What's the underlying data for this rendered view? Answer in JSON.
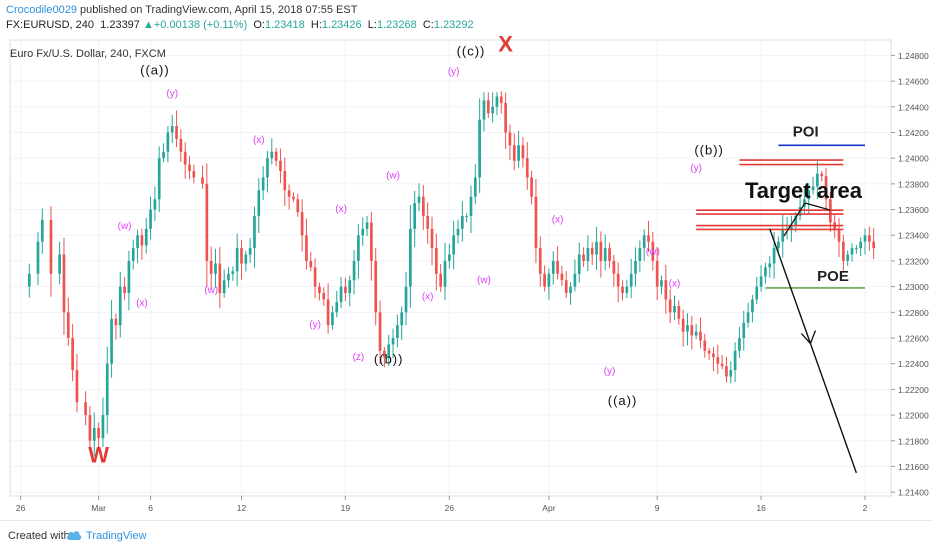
{
  "header": {
    "author": "Crocodile0029",
    "published_text": "published on TradingView.com, April 15, 2018 07:55 EST",
    "symbol": "FX:EURUSD, 240",
    "last": "1.23397",
    "change": "+0.00138 (+0.11%)",
    "o_label": "O:",
    "o_value": "1.23418",
    "h_label": "H:",
    "h_value": "1.23426",
    "l_label": "L:",
    "l_value": "1.23268",
    "c_label": "C:",
    "c_value": "1.23292"
  },
  "footer": {
    "created_with": "Created with",
    "brand": "TradingView"
  },
  "colors": {
    "up": "#26a69a",
    "down": "#ef5350",
    "wave_label": "#e040fb",
    "red_mark": "#e53935",
    "poi_line": "#1a36c4",
    "poe_line": "#6aa84f",
    "grid": "#f0f3fa"
  },
  "chart_data": {
    "type": "candlestick",
    "legend_title": "Euro Fx/U.S. Dollar, 240, FXCM",
    "y_ticks": [
      "1.24800",
      "1.24600",
      "1.24400",
      "1.24200",
      "1.24000",
      "1.23800",
      "1.23600",
      "1.23400",
      "1.23200",
      "1.23000",
      "1.22800",
      "1.22600",
      "1.22400",
      "1.22200",
      "1.22000",
      "1.21800",
      "1.21600",
      "1.21400"
    ],
    "ylim": [
      1.2137,
      1.2492
    ],
    "x_ticks": [
      {
        "label": "26",
        "t": 0
      },
      {
        "label": "Mar",
        "t": 18
      },
      {
        "label": "6",
        "t": 30
      },
      {
        "label": "12",
        "t": 51
      },
      {
        "label": "19",
        "t": 75
      },
      {
        "label": "26",
        "t": 99
      },
      {
        "label": "Apr",
        "t": 122
      },
      {
        "label": "9",
        "t": 147
      },
      {
        "label": "16",
        "t": 171
      },
      {
        "label": "2",
        "t": 195
      }
    ],
    "xlim": [
      -2,
      198
    ],
    "price_path": [
      [
        0,
        1.23
      ],
      [
        2,
        1.231
      ],
      [
        4,
        1.2335
      ],
      [
        5,
        1.2352
      ],
      [
        7,
        1.231
      ],
      [
        9,
        1.2325
      ],
      [
        10,
        1.228
      ],
      [
        11,
        1.226
      ],
      [
        12,
        1.2235
      ],
      [
        13,
        1.221
      ],
      [
        15,
        1.22
      ],
      [
        16,
        1.218
      ],
      [
        17,
        1.219
      ],
      [
        18,
        1.2182
      ],
      [
        19,
        1.22
      ],
      [
        20,
        1.224
      ],
      [
        21,
        1.2275
      ],
      [
        22,
        1.227
      ],
      [
        23,
        1.23
      ],
      [
        24,
        1.2295
      ],
      [
        25,
        1.232
      ],
      [
        26,
        1.233
      ],
      [
        27,
        1.234
      ],
      [
        28,
        1.2332
      ],
      [
        29,
        1.2345
      ],
      [
        30,
        1.236
      ],
      [
        31,
        1.2368
      ],
      [
        32,
        1.24
      ],
      [
        33,
        1.2405
      ],
      [
        34,
        1.242
      ],
      [
        35,
        1.2425
      ],
      [
        36,
        1.2415
      ],
      [
        37,
        1.2405
      ],
      [
        38,
        1.2395
      ],
      [
        39,
        1.239
      ],
      [
        40,
        1.2385
      ],
      [
        42,
        1.238
      ],
      [
        43,
        1.232
      ],
      [
        44,
        1.231
      ],
      [
        45,
        1.2318
      ],
      [
        46,
        1.2295
      ],
      [
        47,
        1.2305
      ],
      [
        48,
        1.231
      ],
      [
        49,
        1.2312
      ],
      [
        50,
        1.233
      ],
      [
        51,
        1.2318
      ],
      [
        52,
        1.2325
      ],
      [
        53,
        1.233
      ],
      [
        54,
        1.2355
      ],
      [
        55,
        1.2375
      ],
      [
        56,
        1.2385
      ],
      [
        57,
        1.24
      ],
      [
        58,
        1.2405
      ],
      [
        59,
        1.2398
      ],
      [
        60,
        1.239
      ],
      [
        61,
        1.2375
      ],
      [
        62,
        1.237
      ],
      [
        63,
        1.2368
      ],
      [
        64,
        1.2358
      ],
      [
        65,
        1.234
      ],
      [
        66,
        1.232
      ],
      [
        67,
        1.2315
      ],
      [
        68,
        1.23
      ],
      [
        69,
        1.2295
      ],
      [
        70,
        1.229
      ],
      [
        71,
        1.227
      ],
      [
        72,
        1.228
      ],
      [
        73,
        1.2288
      ],
      [
        74,
        1.23
      ],
      [
        75,
        1.2295
      ],
      [
        76,
        1.2305
      ],
      [
        77,
        1.232
      ],
      [
        78,
        1.234
      ],
      [
        79,
        1.2345
      ],
      [
        80,
        1.235
      ],
      [
        81,
        1.232
      ],
      [
        82,
        1.228
      ],
      [
        83,
        1.225
      ],
      [
        84,
        1.2245
      ],
      [
        85,
        1.2255
      ],
      [
        86,
        1.226
      ],
      [
        87,
        1.227
      ],
      [
        88,
        1.228
      ],
      [
        89,
        1.23
      ],
      [
        90,
        1.2345
      ],
      [
        91,
        1.2365
      ],
      [
        92,
        1.237
      ],
      [
        93,
        1.2355
      ],
      [
        94,
        1.2345
      ],
      [
        95,
        1.233
      ],
      [
        96,
        1.231
      ],
      [
        97,
        1.23
      ],
      [
        98,
        1.232
      ],
      [
        99,
        1.2325
      ],
      [
        100,
        1.234
      ],
      [
        101,
        1.2345
      ],
      [
        102,
        1.2355
      ],
      [
        103,
        1.2355
      ],
      [
        104,
        1.237
      ],
      [
        105,
        1.2385
      ],
      [
        106,
        1.243
      ],
      [
        107,
        1.2445
      ],
      [
        108,
        1.2435
      ],
      [
        109,
        1.244
      ],
      [
        110,
        1.2448
      ],
      [
        111,
        1.2443
      ],
      [
        112,
        1.242
      ],
      [
        113,
        1.241
      ],
      [
        114,
        1.2398
      ],
      [
        115,
        1.241
      ],
      [
        116,
        1.24
      ],
      [
        117,
        1.2385
      ],
      [
        118,
        1.237
      ],
      [
        119,
        1.233
      ],
      [
        120,
        1.231
      ],
      [
        121,
        1.23
      ],
      [
        122,
        1.231
      ],
      [
        123,
        1.232
      ],
      [
        124,
        1.231
      ],
      [
        125,
        1.2305
      ],
      [
        126,
        1.2295
      ],
      [
        127,
        1.23
      ],
      [
        128,
        1.231
      ],
      [
        129,
        1.2325
      ],
      [
        130,
        1.232
      ],
      [
        131,
        1.233
      ],
      [
        132,
        1.2325
      ],
      [
        133,
        1.2335
      ],
      [
        134,
        1.232
      ],
      [
        135,
        1.233
      ],
      [
        136,
        1.232
      ],
      [
        137,
        1.231
      ],
      [
        138,
        1.23
      ],
      [
        139,
        1.2295
      ],
      [
        140,
        1.23
      ],
      [
        141,
        1.231
      ],
      [
        142,
        1.232
      ],
      [
        143,
        1.233
      ],
      [
        144,
        1.234
      ],
      [
        145,
        1.2335
      ],
      [
        146,
        1.232
      ],
      [
        147,
        1.23
      ],
      [
        148,
        1.2305
      ],
      [
        149,
        1.229
      ],
      [
        150,
        1.228
      ],
      [
        151,
        1.2285
      ],
      [
        152,
        1.2275
      ],
      [
        153,
        1.2265
      ],
      [
        154,
        1.227
      ],
      [
        155,
        1.2262
      ],
      [
        156,
        1.2265
      ],
      [
        157,
        1.2258
      ],
      [
        158,
        1.225
      ],
      [
        159,
        1.2248
      ],
      [
        160,
        1.2245
      ],
      [
        161,
        1.224
      ],
      [
        162,
        1.2238
      ],
      [
        163,
        1.223
      ],
      [
        164,
        1.2235
      ],
      [
        165,
        1.225
      ],
      [
        166,
        1.226
      ],
      [
        167,
        1.2272
      ],
      [
        168,
        1.228
      ],
      [
        169,
        1.229
      ],
      [
        170,
        1.23
      ],
      [
        171,
        1.2308
      ],
      [
        172,
        1.2315
      ],
      [
        173,
        1.2318
      ],
      [
        174,
        1.233
      ],
      [
        175,
        1.2335
      ],
      [
        176,
        1.2345
      ],
      [
        177,
        1.2345
      ],
      [
        178,
        1.2348
      ],
      [
        179,
        1.2355
      ],
      [
        180,
        1.2362
      ],
      [
        181,
        1.2368
      ],
      [
        182,
        1.2375
      ],
      [
        183,
        1.2378
      ],
      [
        184,
        1.2388
      ],
      [
        185,
        1.2386
      ],
      [
        186,
        1.2368
      ],
      [
        187,
        1.235
      ],
      [
        188,
        1.2345
      ],
      [
        189,
        1.2335
      ],
      [
        190,
        1.232
      ],
      [
        191,
        1.2325
      ],
      [
        192,
        1.233
      ],
      [
        193,
        1.233
      ],
      [
        194,
        1.2335
      ],
      [
        195,
        1.234
      ],
      [
        196,
        1.2335
      ],
      [
        197,
        1.233
      ]
    ],
    "wave_labels": [
      {
        "text": "(w)",
        "t": 24,
        "v": 1.2345
      },
      {
        "text": "(x)",
        "t": 28,
        "v": 1.2285
      },
      {
        "text": "(y)",
        "t": 35,
        "v": 1.2448
      },
      {
        "text": "(w)",
        "t": 44,
        "v": 1.2295
      },
      {
        "text": "(x)",
        "t": 55,
        "v": 1.2412
      },
      {
        "text": "(y)",
        "t": 68,
        "v": 1.2268
      },
      {
        "text": "(x)",
        "t": 74,
        "v": 1.2358
      },
      {
        "text": "(z)",
        "t": 78,
        "v": 1.2243
      },
      {
        "text": "(w)",
        "t": 86,
        "v": 1.2384
      },
      {
        "text": "(x)",
        "t": 94,
        "v": 1.229
      },
      {
        "text": "(y)",
        "t": 100,
        "v": 1.2465
      },
      {
        "text": "(w)",
        "t": 107,
        "v": 1.2303
      },
      {
        "text": "(x)",
        "t": 124,
        "v": 1.235
      },
      {
        "text": "(w)",
        "t": 146,
        "v": 1.2325
      },
      {
        "text": "(y)",
        "t": 136,
        "v": 1.2232
      },
      {
        "text": "(x)",
        "t": 151,
        "v": 1.23
      },
      {
        "text": "(y)",
        "t": 156,
        "v": 1.239
      }
    ],
    "degree_labels": [
      {
        "text": "((a))",
        "t": 31,
        "v": 1.2465
      },
      {
        "text": "((c))",
        "t": 104,
        "v": 1.248
      },
      {
        "text": "((b))",
        "t": 85,
        "v": 1.224
      },
      {
        "text": "((a))",
        "t": 139,
        "v": 1.2208
      },
      {
        "text": "((b))",
        "t": 159,
        "v": 1.2403
      }
    ],
    "markers": [
      {
        "text": "W",
        "t": 18,
        "v": 1.2163
      },
      {
        "text": "X",
        "t": 112,
        "v": 1.2483
      }
    ],
    "target_lines": [
      1.23985,
      1.2395,
      1.23595,
      1.23565,
      1.23475,
      1.23445
    ],
    "target_zones": [
      [
        166,
        190
      ],
      [
        156,
        190
      ]
    ],
    "poi": {
      "label": "POI",
      "level": 1.241,
      "t_from": 175,
      "t_to": 195
    },
    "poe": {
      "label": "POE",
      "level": 1.2299,
      "t_from": 172,
      "t_to": 195
    },
    "target_label": "Target area",
    "forecast": [
      [
        173,
        1.2345
      ],
      [
        193,
        1.2155
      ]
    ]
  }
}
